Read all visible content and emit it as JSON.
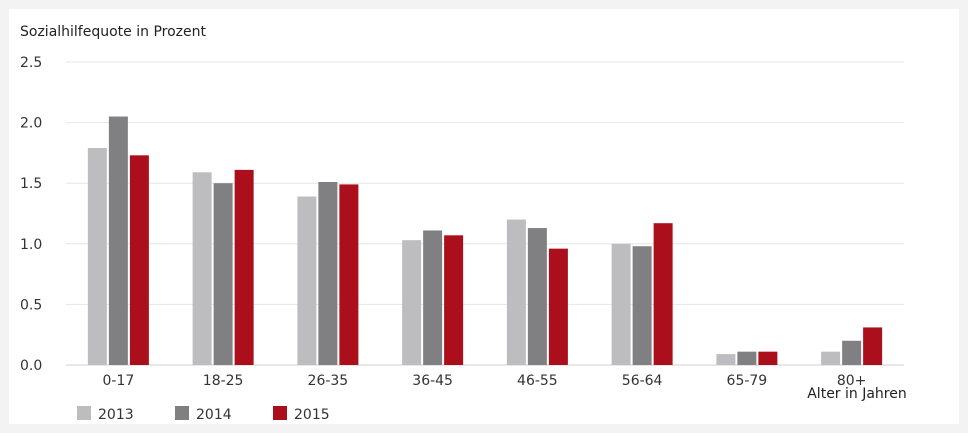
{
  "chart_data": {
    "type": "bar",
    "title": "",
    "ylabel": "Sozialhilfequote in Prozent",
    "xlabel": "Alter in Jahren",
    "categories": [
      "0-17",
      "18-25",
      "26-35",
      "36-45",
      "46-55",
      "56-64",
      "65-79",
      "80+"
    ],
    "ylim": [
      0,
      2.5
    ],
    "yticks": [
      "0.0",
      "0.5",
      "1.0",
      "1.5",
      "2.0",
      "2.5"
    ],
    "grid": true,
    "legend_position": "bottom-left",
    "series": [
      {
        "name": "2013",
        "color": "#bdbdbf",
        "values": [
          1.79,
          1.59,
          1.39,
          1.03,
          1.2,
          1.0,
          0.09,
          0.11
        ]
      },
      {
        "name": "2014",
        "color": "#808083",
        "values": [
          2.05,
          1.5,
          1.51,
          1.11,
          1.13,
          0.98,
          0.11,
          0.2
        ]
      },
      {
        "name": "2015",
        "color": "#ab0f1c",
        "values": [
          1.73,
          1.61,
          1.49,
          1.07,
          0.96,
          1.17,
          0.11,
          0.31
        ]
      }
    ]
  }
}
